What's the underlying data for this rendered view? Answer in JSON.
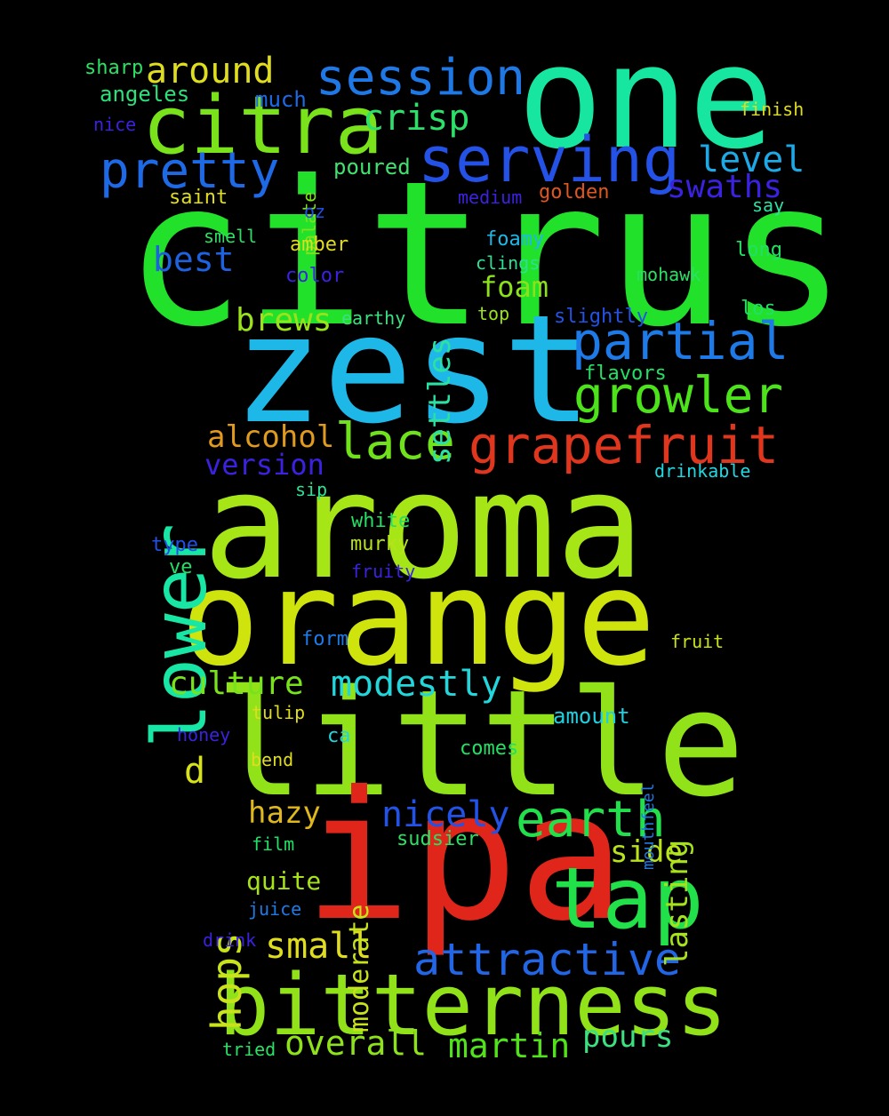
{
  "words": [
    {
      "t": "citrus",
      "c": "#22e12a"
    },
    {
      "t": "aroma",
      "c": "#a6e616"
    },
    {
      "t": "zest",
      "c": "#1eb8e8"
    },
    {
      "t": "orange",
      "c": "#cfe40d"
    },
    {
      "t": "one",
      "c": "#17e6a1"
    },
    {
      "t": "little",
      "c": "#92e219"
    },
    {
      "t": "ipa",
      "c": "#e0261b"
    },
    {
      "t": "bitterness",
      "c": "#92e219"
    },
    {
      "t": "tap",
      "c": "#22e049"
    },
    {
      "t": "citra",
      "c": "#7ae21b"
    },
    {
      "t": "serving",
      "c": "#2451e6"
    },
    {
      "t": "session",
      "c": "#1e79e6"
    },
    {
      "t": "pretty",
      "c": "#1e6ae6"
    },
    {
      "t": "lower",
      "c": "#18e6a4"
    },
    {
      "t": "partial",
      "c": "#1e7ae6"
    },
    {
      "t": "growler",
      "c": "#4ce31b"
    },
    {
      "t": "grapefruit",
      "c": "#e0361e"
    },
    {
      "t": "attractive",
      "c": "#2266e6"
    },
    {
      "t": "earth",
      "c": "#22e04b"
    },
    {
      "t": "lace",
      "c": "#70e21b"
    },
    {
      "t": "modestly",
      "c": "#22d7dc"
    },
    {
      "t": "around",
      "c": "#e0dc1e"
    },
    {
      "t": "crisp",
      "c": "#2ce06a"
    },
    {
      "t": "level",
      "c": "#1ea8e6"
    },
    {
      "t": "swaths",
      "c": "#3a22e0"
    },
    {
      "t": "best",
      "c": "#1e62e0"
    },
    {
      "t": "brews",
      "c": "#9ae21b"
    },
    {
      "t": "foam",
      "c": "#8be21b"
    },
    {
      "t": "settles",
      "c": "#2ce0a4"
    },
    {
      "t": "alcohol",
      "c": "#e09a1e"
    },
    {
      "t": "version",
      "c": "#3a22e0"
    },
    {
      "t": "culture",
      "c": "#78e21b"
    },
    {
      "t": "nicely",
      "c": "#2252e6"
    },
    {
      "t": "hops",
      "c": "#c8e21b"
    },
    {
      "t": "hazy",
      "c": "#e0b81e"
    },
    {
      "t": "lasting",
      "c": "#a6e21b"
    },
    {
      "t": "side",
      "c": "#b8e21b"
    },
    {
      "t": "overall",
      "c": "#8ee21b"
    },
    {
      "t": "martin",
      "c": "#52e21b"
    },
    {
      "t": "pours",
      "c": "#3ce080"
    },
    {
      "t": "small",
      "c": "#e0dc1e"
    },
    {
      "t": "quite",
      "c": "#a6e21b"
    },
    {
      "t": "moderate",
      "c": "#c8e21b"
    },
    {
      "t": "d",
      "c": "#d8e21b"
    },
    {
      "t": "sharp",
      "c": "#2ce064"
    },
    {
      "t": "angeles",
      "c": "#2ce07a"
    },
    {
      "t": "nice",
      "c": "#3a22e0"
    },
    {
      "t": "much",
      "c": "#1e6ae6"
    },
    {
      "t": "palate",
      "c": "#7ee21b"
    },
    {
      "t": "poured",
      "c": "#42e06e"
    },
    {
      "t": "saint",
      "c": "#e0dc1e"
    },
    {
      "t": "medium",
      "c": "#3c22e0"
    },
    {
      "t": "golden",
      "c": "#e0561e"
    },
    {
      "t": "oz",
      "c": "#2250e6"
    },
    {
      "t": "finish",
      "c": "#e0dc1e"
    },
    {
      "t": "say",
      "c": "#2ce0a4"
    },
    {
      "t": "smell",
      "c": "#2ce064"
    },
    {
      "t": "amber",
      "c": "#e0dc1e"
    },
    {
      "t": "color",
      "c": "#3a22e0"
    },
    {
      "t": "foamy",
      "c": "#1eb8e6"
    },
    {
      "t": "clings",
      "c": "#2ce094"
    },
    {
      "t": "long",
      "c": "#22e064"
    },
    {
      "t": "mohawk",
      "c": "#2ce064"
    },
    {
      "t": "earthy",
      "c": "#3ce080"
    },
    {
      "t": "top",
      "c": "#9ae21b"
    },
    {
      "t": "slightly",
      "c": "#2252e6"
    },
    {
      "t": "los",
      "c": "#22e064"
    },
    {
      "t": "flavors",
      "c": "#22e064"
    },
    {
      "t": "drinkable",
      "c": "#22d7e0"
    },
    {
      "t": "sip",
      "c": "#2ce094"
    },
    {
      "t": "white",
      "c": "#22e064"
    },
    {
      "t": "murky",
      "c": "#b8e21b"
    },
    {
      "t": "type",
      "c": "#2250e6"
    },
    {
      "t": "fruity",
      "c": "#3a22e0"
    },
    {
      "t": "ve",
      "c": "#22e064"
    },
    {
      "t": "form",
      "c": "#1e7ae6"
    },
    {
      "t": "fruit",
      "c": "#c8e21b"
    },
    {
      "t": "tulip",
      "c": "#e0dc1e"
    },
    {
      "t": "amount",
      "c": "#1ed0e0"
    },
    {
      "t": "honey",
      "c": "#3a22e0"
    },
    {
      "t": "ca",
      "c": "#22d7dc"
    },
    {
      "t": "mouthfeel",
      "c": "#1e7ae6"
    },
    {
      "t": "comes",
      "c": "#22e064"
    },
    {
      "t": "bend",
      "c": "#e0dc1e"
    },
    {
      "t": "sudsier",
      "c": "#2ce064"
    },
    {
      "t": "film",
      "c": "#22e064"
    },
    {
      "t": "juice",
      "c": "#1e7ae6"
    },
    {
      "t": "drink",
      "c": "#3a22e0"
    },
    {
      "t": "tried",
      "c": "#2ce064"
    }
  ]
}
